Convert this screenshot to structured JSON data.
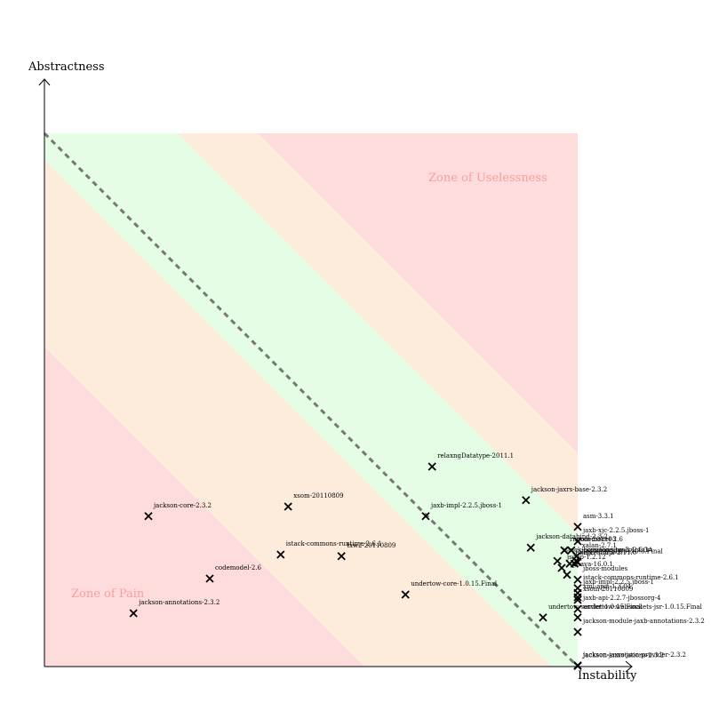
{
  "chart_data": {
    "type": "scatter",
    "title": "",
    "xlabel": "Instability",
    "ylabel": "Abstractness",
    "xlim": [
      0,
      1
    ],
    "ylim": [
      0,
      1
    ],
    "grid": false,
    "legend": "none",
    "zone_labels": {
      "pain": "Zone of Pain",
      "uselessness": "Zone of Uselessness"
    },
    "colors": {
      "red_zone": "#ffdcdc",
      "orange_zone": "#fdebdb",
      "green_zone": "#e4fde4",
      "main_sequence": "#777777",
      "zone_text": "#f4a0a0",
      "marker": "#000000"
    },
    "points": [
      {
        "label": "relaxngDatatype-2011.1",
        "x": 0.727,
        "y": 0.375
      },
      {
        "label": "jackson-jaxrs-base-2.3.2",
        "x": 0.903,
        "y": 0.312
      },
      {
        "label": "xsom-20110809",
        "x": 0.457,
        "y": 0.3
      },
      {
        "label": "jackson-core-2.3.2",
        "x": 0.195,
        "y": 0.282
      },
      {
        "label": "jaxb-impl-2.2.5.jboss-1",
        "x": 0.715,
        "y": 0.282
      },
      {
        "label": "asm-3.3.1",
        "x": 1.0,
        "y": 0.262
      },
      {
        "label": "jaxb-xjc-2.2.5.jboss-1",
        "x": 1.0,
        "y": 0.235
      },
      {
        "label": "jackson-databind-2.3.2",
        "x": 0.912,
        "y": 0.223
      },
      {
        "label": "istack-commons-runtime-2.6.1",
        "x": 0.443,
        "y": 0.21
      },
      {
        "label": "rngom-201103",
        "x": 0.975,
        "y": 0.218
      },
      {
        "label": "codemodel-2.6",
        "x": 0.988,
        "y": 0.218
      },
      {
        "label": "xalan-2.7.1",
        "x": 0.998,
        "y": 0.207
      },
      {
        "label": "txw2-20110809",
        "x": 0.557,
        "y": 0.207
      },
      {
        "label": "istack-commons-tools-2.6.1",
        "x": 0.962,
        "y": 0.198
      },
      {
        "label": "jboss-logging-3.1.4.GA",
        "x": 0.997,
        "y": 0.198
      },
      {
        "label": "resteasy-jaxrs-3.0.8.Final",
        "x": 1.0,
        "y": 0.196
      },
      {
        "label": "Fhirp",
        "x": 0.985,
        "y": 0.193
      },
      {
        "label": "xercesImpl-2.11.0",
        "x": 0.994,
        "y": 0.193
      },
      {
        "label": "jsoup-1.2.12",
        "x": 0.97,
        "y": 0.185
      },
      {
        "label": "guava-16.0.1",
        "x": 0.98,
        "y": 0.172
      },
      {
        "label": "codemodel-2.6",
        "x": 0.31,
        "y": 0.165
      },
      {
        "label": "jboss-modules",
        "x": 1.0,
        "y": 0.163
      },
      {
        "label": "undertow-core-1.0.15.Final",
        "x": 0.677,
        "y": 0.135
      },
      {
        "label": "istack-commons-runtime-2.6.1",
        "x": 1.0,
        "y": 0.147
      },
      {
        "label": "jaxb-impl-2.2.5.jboss-1",
        "x": 1.0,
        "y": 0.138
      },
      {
        "label": "xml-apis-1.3.04",
        "x": 1.0,
        "y": 0.13
      },
      {
        "label": "xsom-20110809",
        "x": 1.0,
        "y": 0.125
      },
      {
        "label": "jackson-annotations-2.3.2",
        "x": 0.167,
        "y": 0.1
      },
      {
        "label": "jaxb-api-2.2.7-jbossorg-4",
        "x": 1.0,
        "y": 0.108
      },
      {
        "label": "undertow-servlet-1.0.15.Final",
        "x": 0.935,
        "y": 0.092
      },
      {
        "label": "undertow-websockets-jsr-1.0.15.Final",
        "x": 1.0,
        "y": 0.092
      },
      {
        "label": "jackson-module-jaxb-annotations-2.3.2",
        "x": 1.0,
        "y": 0.065
      },
      {
        "label": "jackson-jaxrs-json-provider-2.3.2",
        "x": 1.0,
        "y": 0.002
      },
      {
        "label": "jackson-annotations-2.3.2",
        "x": 1.0,
        "y": 0.001
      }
    ]
  }
}
